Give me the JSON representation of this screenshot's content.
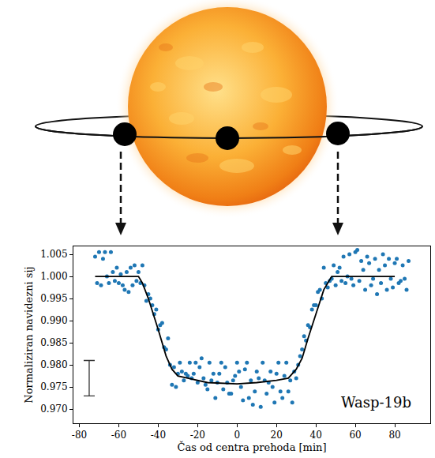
{
  "chart_data": {
    "type": "scatter",
    "x_label": "Čas od centra prehoda [min]",
    "y_label": "Normaliziran navidezni sij",
    "annotations": [
      {
        "text": "Wasp-19b",
        "x": 52,
        "y": 0.9715
      }
    ],
    "xlim": [
      -83,
      98
    ],
    "xticks": [
      -80,
      -60,
      -40,
      -20,
      0,
      20,
      40,
      60,
      80
    ],
    "ylim": [
      0.9668,
      1.0068
    ],
    "yticks": [
      {
        "value": 0.97,
        "label": "0.970"
      },
      0.975,
      {
        "value": 0.98,
        "label": "0.980"
      },
      0.985,
      {
        "value": 0.99,
        "label": "0.990"
      },
      0.995,
      {
        "value": 1,
        "label": "1.000"
      },
      1.005
    ],
    "grid": false,
    "error_bar": {
      "x": -75,
      "y": 0.977,
      "error": 0.004
    },
    "series": [
      {
        "type": "scatter",
        "color": "#1f77b4",
        "marker": "circle",
        "x": [
          -72,
          -71,
          -70,
          -69,
          -68,
          -67,
          -66,
          -65,
          -64,
          -63,
          -62,
          -61,
          -60,
          -59,
          -58,
          -57,
          -56,
          -55,
          -54,
          -53,
          -52,
          -51,
          -50,
          -49,
          -48,
          -47,
          -46,
          -45,
          -44,
          -43,
          -42,
          -41,
          -40,
          -39,
          -38,
          -37,
          -36,
          -35,
          -34,
          -33,
          -32,
          -31,
          -30,
          -29,
          -28,
          -27,
          -26,
          -25,
          -24,
          -23,
          -22,
          -21,
          -20,
          -19,
          -18,
          -17,
          -16,
          -15,
          -14,
          -13,
          -12,
          -11,
          -10,
          -9,
          -8,
          -7,
          -6,
          -5,
          -4,
          -3,
          -2,
          -1,
          0,
          1,
          2,
          3,
          4,
          5,
          6,
          7,
          8,
          9,
          10,
          11,
          12,
          13,
          14,
          15,
          16,
          17,
          18,
          19,
          20,
          21,
          22,
          23,
          24,
          25,
          26,
          27,
          28,
          29,
          30,
          31,
          32,
          33,
          34,
          35,
          36,
          37,
          38,
          39,
          40,
          41,
          42,
          43,
          44,
          45,
          46,
          47,
          48,
          49,
          50,
          51,
          52,
          53,
          54,
          55,
          56,
          57,
          58,
          59,
          60,
          61,
          62,
          63,
          64,
          65,
          66,
          67,
          68,
          69,
          70,
          71,
          72,
          73,
          74,
          75,
          76,
          77,
          78,
          79,
          80,
          81,
          82,
          83,
          84,
          85,
          86,
          87
        ],
        "values": [
          1.0045,
          0.9985,
          1.0055,
          0.998,
          1.004,
          1.0055,
          1.0,
          0.9985,
          1.0055,
          1.001,
          0.999,
          1.002,
          0.9985,
          1.0005,
          0.998,
          0.997,
          1.001,
          0.9965,
          1.002,
          0.998,
          1.0025,
          0.999,
          1.001,
          0.9985,
          1.0025,
          0.998,
          0.9945,
          0.996,
          0.995,
          0.9935,
          0.9915,
          0.9925,
          0.988,
          0.989,
          0.9895,
          0.984,
          0.9835,
          0.986,
          0.98,
          0.9755,
          0.9795,
          0.975,
          0.978,
          0.9805,
          0.9785,
          0.9765,
          0.978,
          0.9775,
          0.9805,
          0.977,
          0.978,
          0.9805,
          0.976,
          0.9795,
          0.9815,
          0.977,
          0.9755,
          0.9745,
          0.9805,
          0.9765,
          0.978,
          0.9725,
          0.976,
          0.978,
          0.9805,
          0.9745,
          0.9795,
          0.976,
          0.9735,
          0.9735,
          0.9765,
          0.9775,
          0.9805,
          0.9785,
          0.975,
          0.972,
          0.979,
          0.9805,
          0.9725,
          0.9765,
          0.971,
          0.974,
          0.9785,
          0.977,
          0.9705,
          0.9805,
          0.9765,
          0.9735,
          0.976,
          0.9785,
          0.975,
          0.9715,
          0.978,
          0.9805,
          0.974,
          0.9725,
          0.9775,
          0.9805,
          0.974,
          0.9765,
          0.9715,
          0.9785,
          0.977,
          0.98,
          0.982,
          0.9835,
          0.9865,
          0.9855,
          0.989,
          0.9885,
          0.9925,
          0.9935,
          0.9935,
          0.9965,
          0.997,
          0.995,
          1.002,
          0.9985,
          0.9975,
          0.999,
          0.9995,
          1.0025,
          0.998,
          1.001,
          1.002,
          0.999,
          1.0045,
          0.9985,
          1.0,
          1.005,
          0.9995,
          0.998,
          1.0055,
          1.006,
          0.999,
          1.0035,
          1.0015,
          0.997,
          1.0045,
          1.003,
          0.998,
          0.9995,
          1.004,
          0.996,
          1.0015,
          0.9985,
          1.005,
          1.0025,
          0.997,
          1.004,
          0.9995,
          0.9975,
          1.003,
          1.004,
          0.9985,
          0.999,
          1.0025,
          0.9995,
          0.997,
          1.0035
        ]
      },
      {
        "type": "line",
        "color": "#000000",
        "line_style": "solid",
        "x": [
          -72,
          -50,
          -48,
          -45,
          -40,
          -36,
          -33,
          -30,
          -25,
          -15,
          0,
          10,
          20,
          26,
          30,
          33,
          36,
          40,
          44,
          48,
          80
        ],
        "values": [
          1.0,
          1.0,
          0.9985,
          0.995,
          0.988,
          0.982,
          0.979,
          0.9775,
          0.977,
          0.976,
          0.9757,
          0.976,
          0.9765,
          0.977,
          0.979,
          0.9815,
          0.986,
          0.9915,
          0.997,
          1.0,
          1.0
        ]
      }
    ]
  }
}
